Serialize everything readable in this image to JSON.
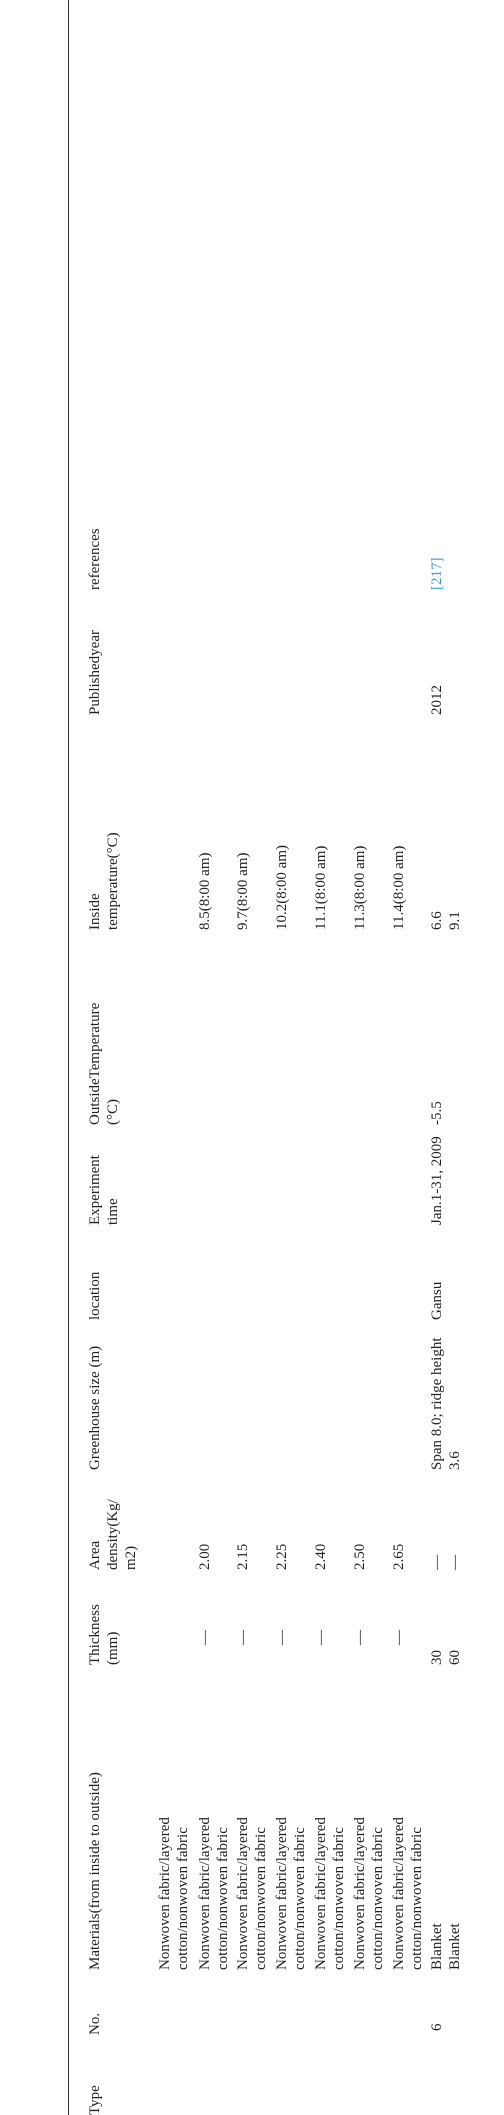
{
  "columns": {
    "type": "Type",
    "no": "No.",
    "materials": "Materials(from inside to outside)",
    "thickness": "Thickness (mm)",
    "area_density": "Area density(Kg/ m2)",
    "greenhouse": "Greenhouse size (m)",
    "location": "location",
    "exp_time": "Experiment time",
    "outside": "OutsideTemperature (°C)",
    "inside": "Inside temperature(°C)",
    "year": "Publishedyear",
    "references": "references"
  },
  "rows": [
    {
      "materials": "Nonwoven fabric/layered cotton/nonwoven fabric"
    },
    {
      "materials": "Nonwoven fabric/layered cotton/nonwoven fabric",
      "thickness": "—",
      "density": "2.00",
      "inside": "8.5(8:00 am)"
    },
    {
      "materials": "Nonwoven fabric/layered cotton/nonwoven fabric",
      "thickness": "—",
      "density": "2.15",
      "inside": "9.7(8:00 am)"
    },
    {
      "materials": "Nonwoven fabric/layered cotton/nonwoven fabric",
      "thickness": "—",
      "density": "2.25",
      "inside": "10.2(8:00 am)"
    },
    {
      "materials": "Nonwoven fabric/layered cotton/nonwoven fabric",
      "thickness": "—",
      "density": "2.40",
      "inside": "11.1(8:00 am)"
    },
    {
      "materials": "Nonwoven fabric/layered cotton/nonwoven fabric",
      "thickness": "—",
      "density": "2.50",
      "inside": "11.3(8:00 am)"
    },
    {
      "materials": "Nonwoven fabric/layered cotton/nonwoven fabric",
      "thickness": "—",
      "density": "2.65",
      "inside": "11.4(8:00 am)"
    },
    {
      "no": "6",
      "materials": "Blanket",
      "thickness": "30",
      "density": "—",
      "greenhouse": "Span 8.0; ridge height 3.6",
      "location": "Gansu",
      "exp_time": "Jan.1-31, 2009",
      "outside": "-5.5",
      "inside": "6.6",
      "year": "2012",
      "ref": "[217]"
    },
    {
      "materials": "Blanket",
      "thickness": "60",
      "density": "—",
      "inside": "9.1"
    }
  ]
}
